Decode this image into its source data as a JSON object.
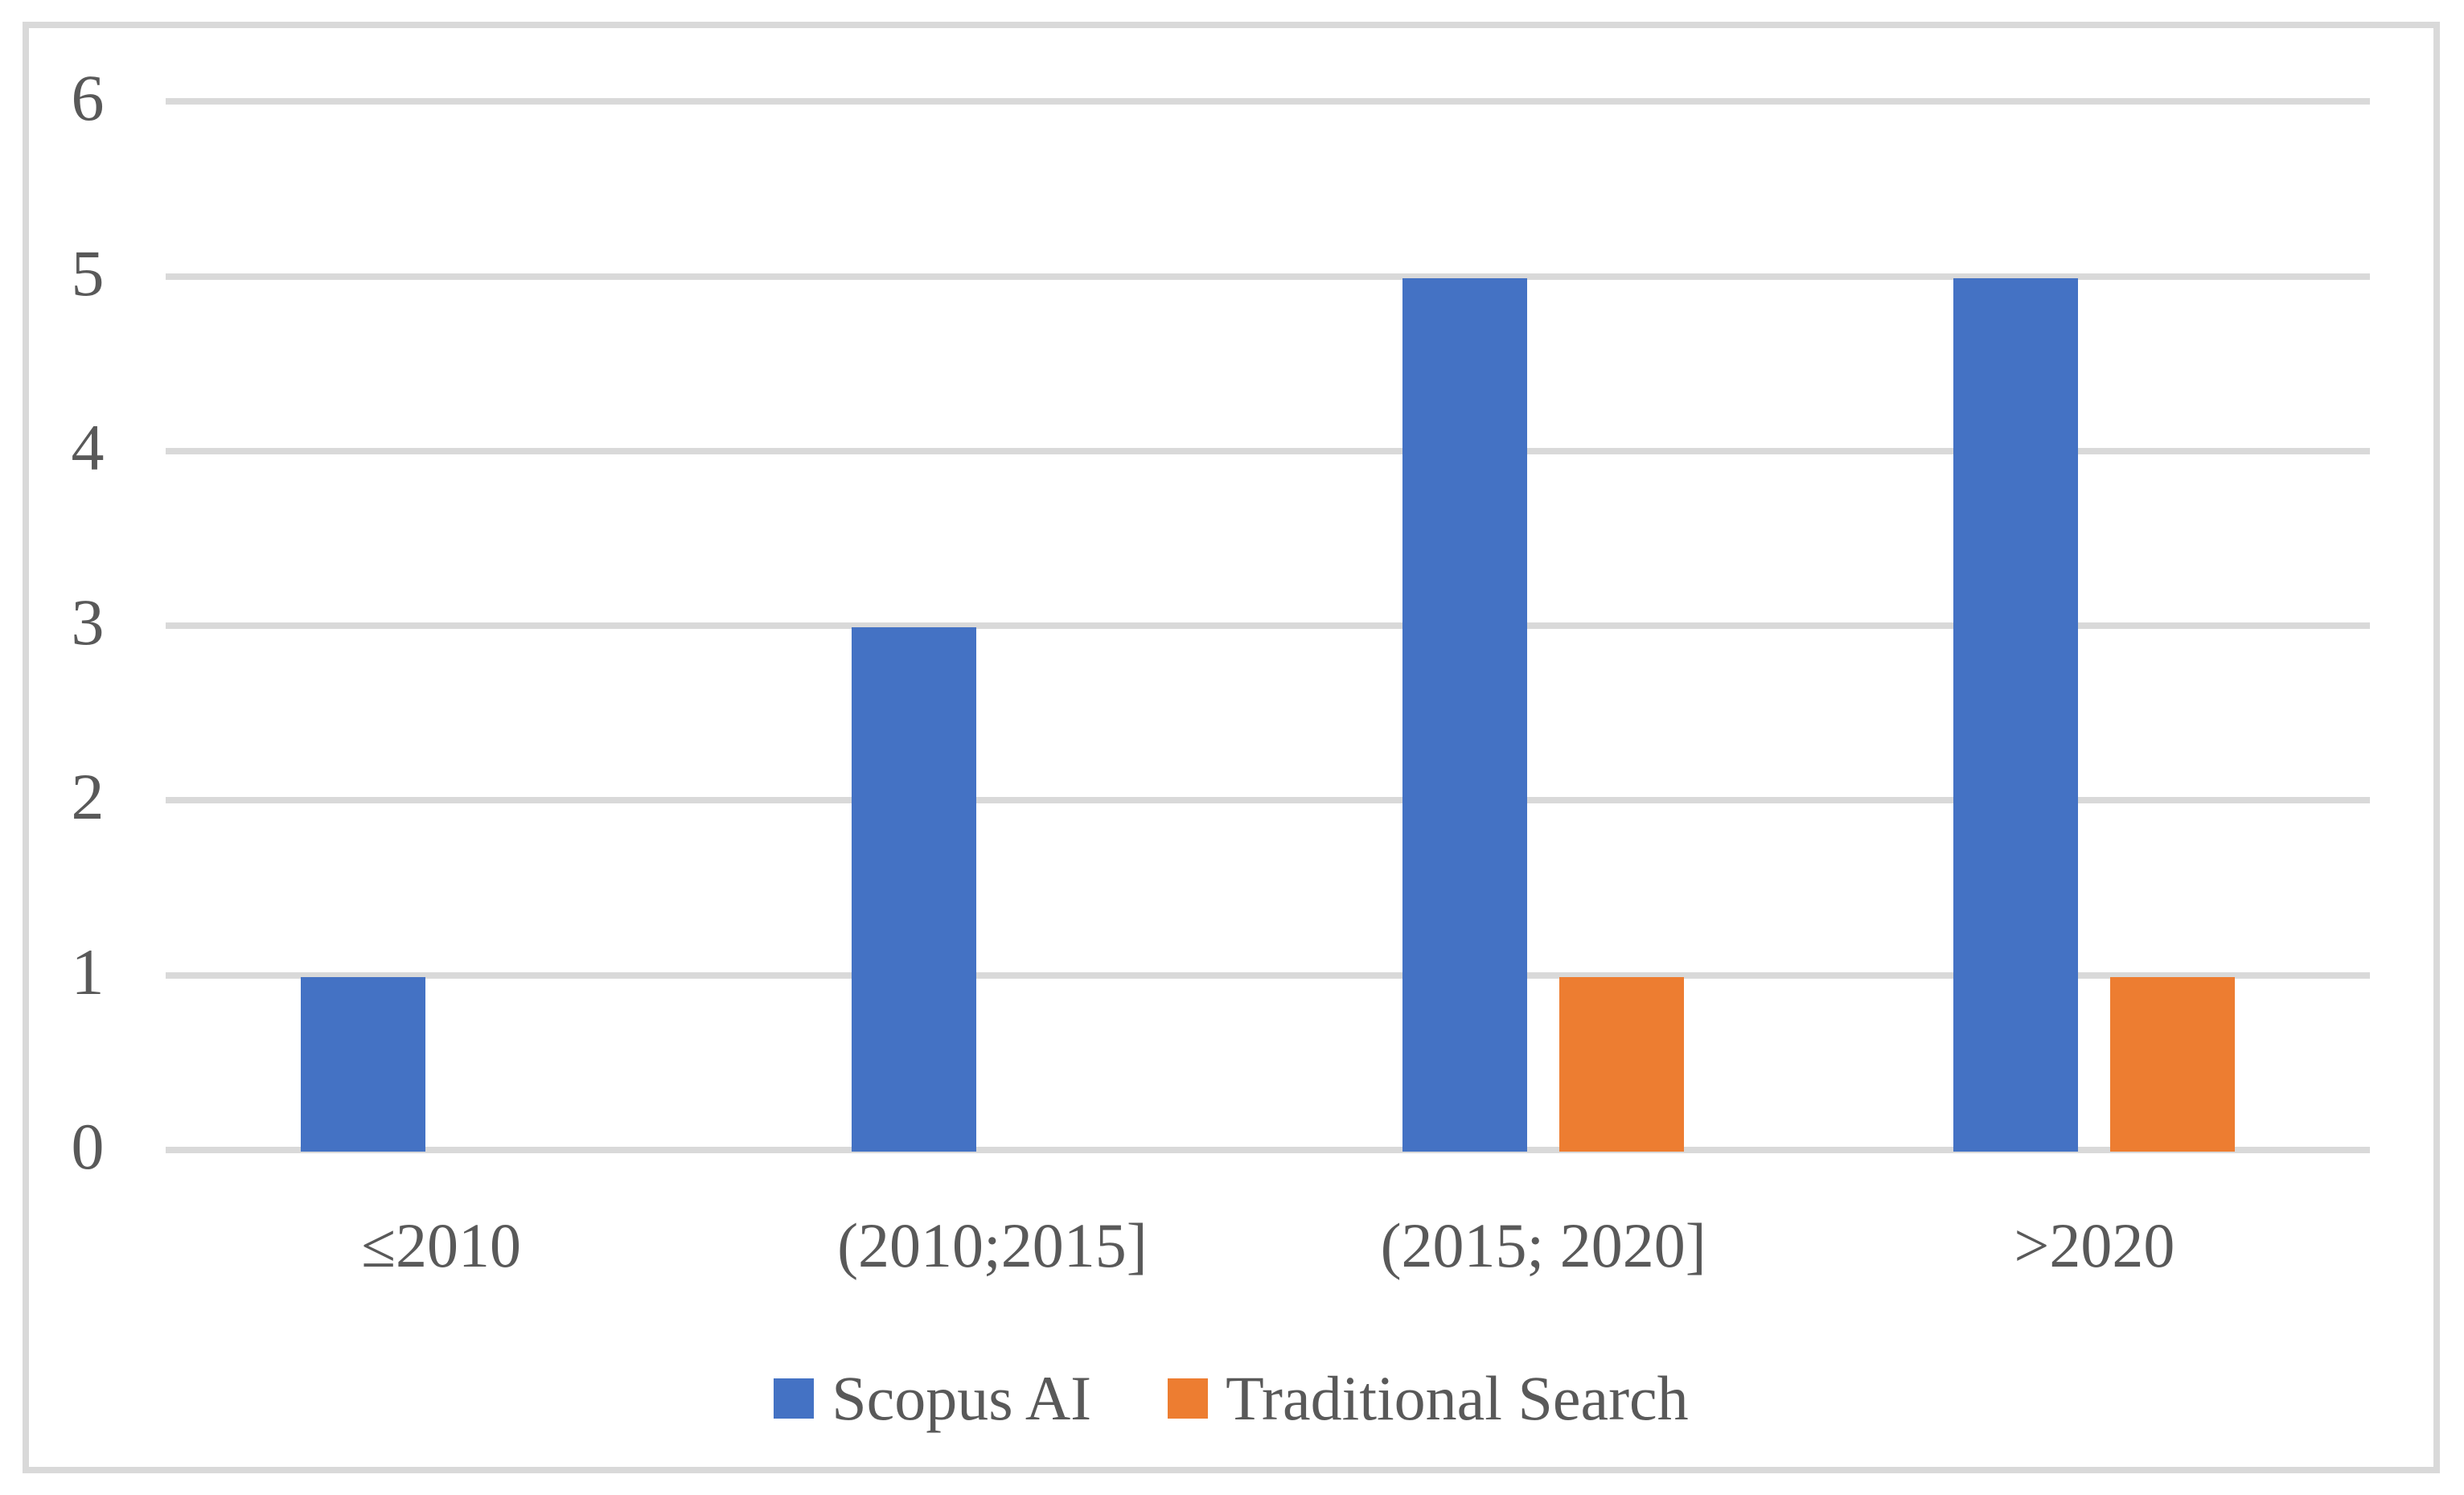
{
  "figure": {
    "background_color": "#FFFFFF",
    "frame_border_color": "#D9D9D9"
  },
  "chart_data": {
    "type": "bar",
    "title": "",
    "xlabel": "",
    "ylabel": "",
    "categories": [
      "≤2010",
      "(2010;2015]",
      "(2015; 2020]",
      ">2020"
    ],
    "series": [
      {
        "name": "Scopus AI",
        "color": "#4472C4",
        "values": [
          1,
          3,
          5,
          5
        ]
      },
      {
        "name": "Traditional Search",
        "color": "#ED7D31",
        "values": [
          0,
          0,
          1,
          1
        ]
      }
    ],
    "ylim": [
      0,
      6
    ],
    "yticks": [
      "0",
      "1",
      "2",
      "3",
      "4",
      "5",
      "6"
    ],
    "grid": true,
    "gridline_color": "#D9D9D9",
    "tick_label_color": "#595959",
    "legend_position": "bottom"
  }
}
